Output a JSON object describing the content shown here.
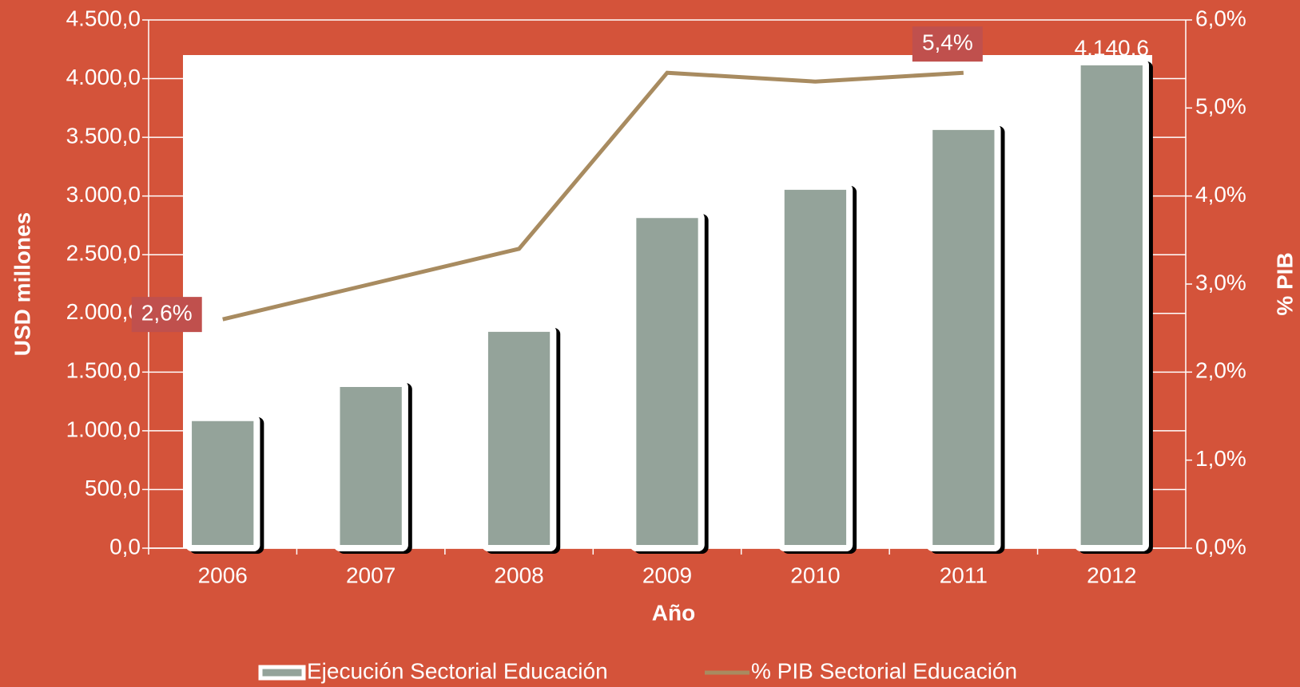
{
  "chart_data": {
    "type": "bar-line",
    "x_label": "Año",
    "y_label": "USD millones",
    "y2_label": "% PIB",
    "categories": [
      "2006",
      "2007",
      "2008",
      "2009",
      "2010",
      "2011",
      "2012"
    ],
    "series": [
      {
        "name": "Ejecución Sectorial Educación",
        "type": "bar",
        "color": "#94a39a",
        "values": [
          1110,
          1400,
          1870,
          2840,
          3080,
          3590,
          4140.6
        ],
        "value_labels": [
          null,
          null,
          null,
          null,
          null,
          null,
          "4.140,6"
        ]
      },
      {
        "name": "% PIB Sectorial Educación",
        "type": "line",
        "axis": "y2",
        "color": "#a88b60",
        "values": [
          2.6,
          3.0,
          3.4,
          5.4,
          5.3,
          5.4,
          null
        ],
        "value_labels": [
          "2,6%",
          null,
          null,
          null,
          null,
          "5,4%",
          null
        ]
      }
    ],
    "ylim": [
      0,
      4500
    ],
    "yticks": [
      {
        "value": 0,
        "label": "0,0"
      },
      {
        "value": 500,
        "label": "500,0"
      },
      {
        "value": 1000,
        "label": "1.000,0"
      },
      {
        "value": 1500,
        "label": "1.500,0"
      },
      {
        "value": 2000,
        "label": "2.000,0"
      },
      {
        "value": 2500,
        "label": "2.500,0"
      },
      {
        "value": 3000,
        "label": "3.000,0"
      },
      {
        "value": 3500,
        "label": "3.500,0"
      },
      {
        "value": 4000,
        "label": "4.000,0"
      },
      {
        "value": 4500,
        "label": "4.500,0"
      }
    ],
    "y2lim": [
      0,
      6
    ],
    "y2ticks": [
      {
        "value": 0,
        "label": "0,0%"
      },
      {
        "value": 1,
        "label": "1,0%"
      },
      {
        "value": 2,
        "label": "2,0%"
      },
      {
        "value": 3,
        "label": "3,0%"
      },
      {
        "value": 4,
        "label": "4,0%"
      },
      {
        "value": 5,
        "label": "5,0%"
      },
      {
        "value": 6,
        "label": "6,0%"
      }
    ],
    "grid": true,
    "legend": "bottom"
  }
}
